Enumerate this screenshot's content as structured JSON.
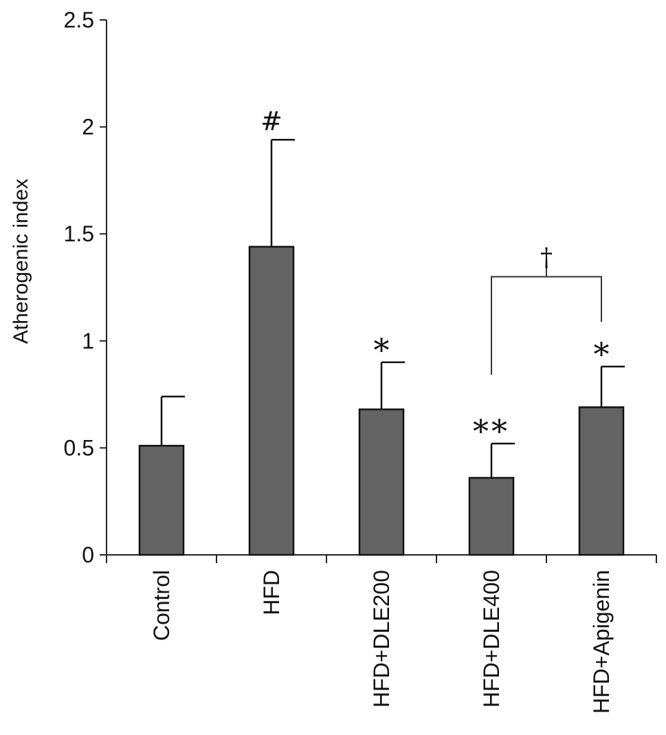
{
  "chart_data": {
    "type": "bar",
    "title": "",
    "xlabel": "",
    "ylabel": "Atherogenic index",
    "ylim": [
      0,
      2.5
    ],
    "yticks": [
      0,
      0.5,
      1,
      1.5,
      2,
      2.5
    ],
    "ytick_labels": [
      "0",
      "0.5",
      "1",
      "1.5",
      "2",
      "2.5"
    ],
    "grid": false,
    "legend": "none",
    "categories": [
      "Control",
      "HFD",
      "HFD+DLE200",
      "HFD+DLE400",
      "HFD+Apigenin"
    ],
    "values": [
      0.51,
      1.44,
      0.68,
      0.36,
      0.69
    ],
    "errors": [
      0.23,
      0.5,
      0.22,
      0.16,
      0.19
    ],
    "bar_color": "#636363",
    "significance": [
      "",
      "#",
      "*",
      "**",
      "*"
    ],
    "comparisons": [
      {
        "from": "HFD+DLE400",
        "to": "HFD+Apigenin",
        "label": "†",
        "y": 1.3
      }
    ]
  }
}
